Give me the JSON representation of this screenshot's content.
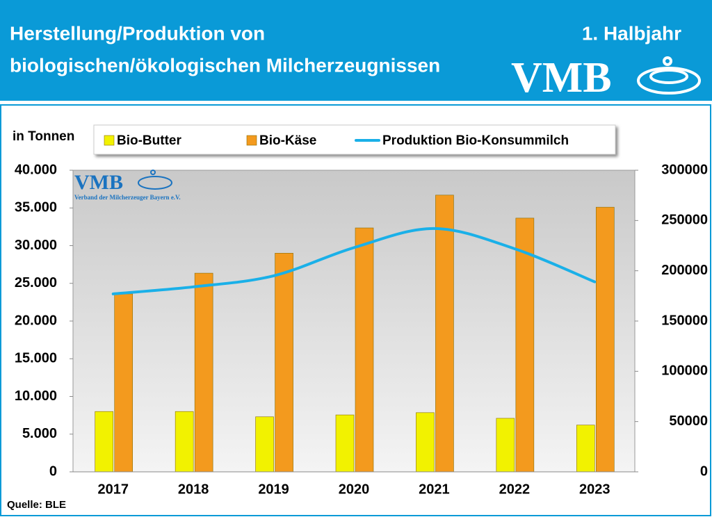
{
  "header": {
    "title": [
      "Herstellung/Produktion von",
      "biologischen/ökologischen Milcherzeugnissen"
    ],
    "period": "1. Halbjahr",
    "logo": "VMB"
  },
  "chart_data": {
    "type": "bar",
    "y_label": "in Tonnen",
    "source": "Quelle: BLE",
    "watermark": {
      "name": "VMB",
      "subtitle": "Verband der Milcherzeuger Bayern e.V."
    },
    "categories": [
      "2017",
      "2018",
      "2019",
      "2020",
      "2021",
      "2022",
      "2023"
    ],
    "series": [
      {
        "name": "Bio-Butter",
        "color": "#f2f200",
        "type": "bar",
        "values": [
          8000,
          8000,
          7300,
          7550,
          7850,
          7100,
          6200
        ]
      },
      {
        "name": "Bio-Käse",
        "color": "#f39a1e",
        "type": "bar",
        "values": [
          23600,
          26350,
          29000,
          32350,
          36700,
          33650,
          35100
        ]
      },
      {
        "name": "Produktion Bio-Konsummilch",
        "color": "#1ab0e8",
        "type": "line",
        "axis": "y2",
        "smooth": true,
        "values": [
          177000,
          184000,
          195000,
          223000,
          242000,
          222000,
          189000
        ]
      }
    ],
    "ylim": [
      0,
      40000
    ],
    "yticks": [
      0,
      {
        "value": 5000,
        "label": "5.000"
      },
      {
        "value": 10000,
        "label": "10.000"
      },
      {
        "value": 15000,
        "label": "15.000"
      },
      {
        "value": 20000,
        "label": "20.000"
      },
      {
        "value": 25000,
        "label": "25.000"
      },
      {
        "value": 30000,
        "label": "30.000"
      },
      {
        "value": 35000,
        "label": "35.000"
      },
      {
        "value": 40000,
        "label": "40.000"
      }
    ],
    "y2lim": [
      0,
      300000
    ],
    "y2ticks": [
      0,
      50000,
      100000,
      150000,
      200000,
      250000,
      300000
    ]
  }
}
